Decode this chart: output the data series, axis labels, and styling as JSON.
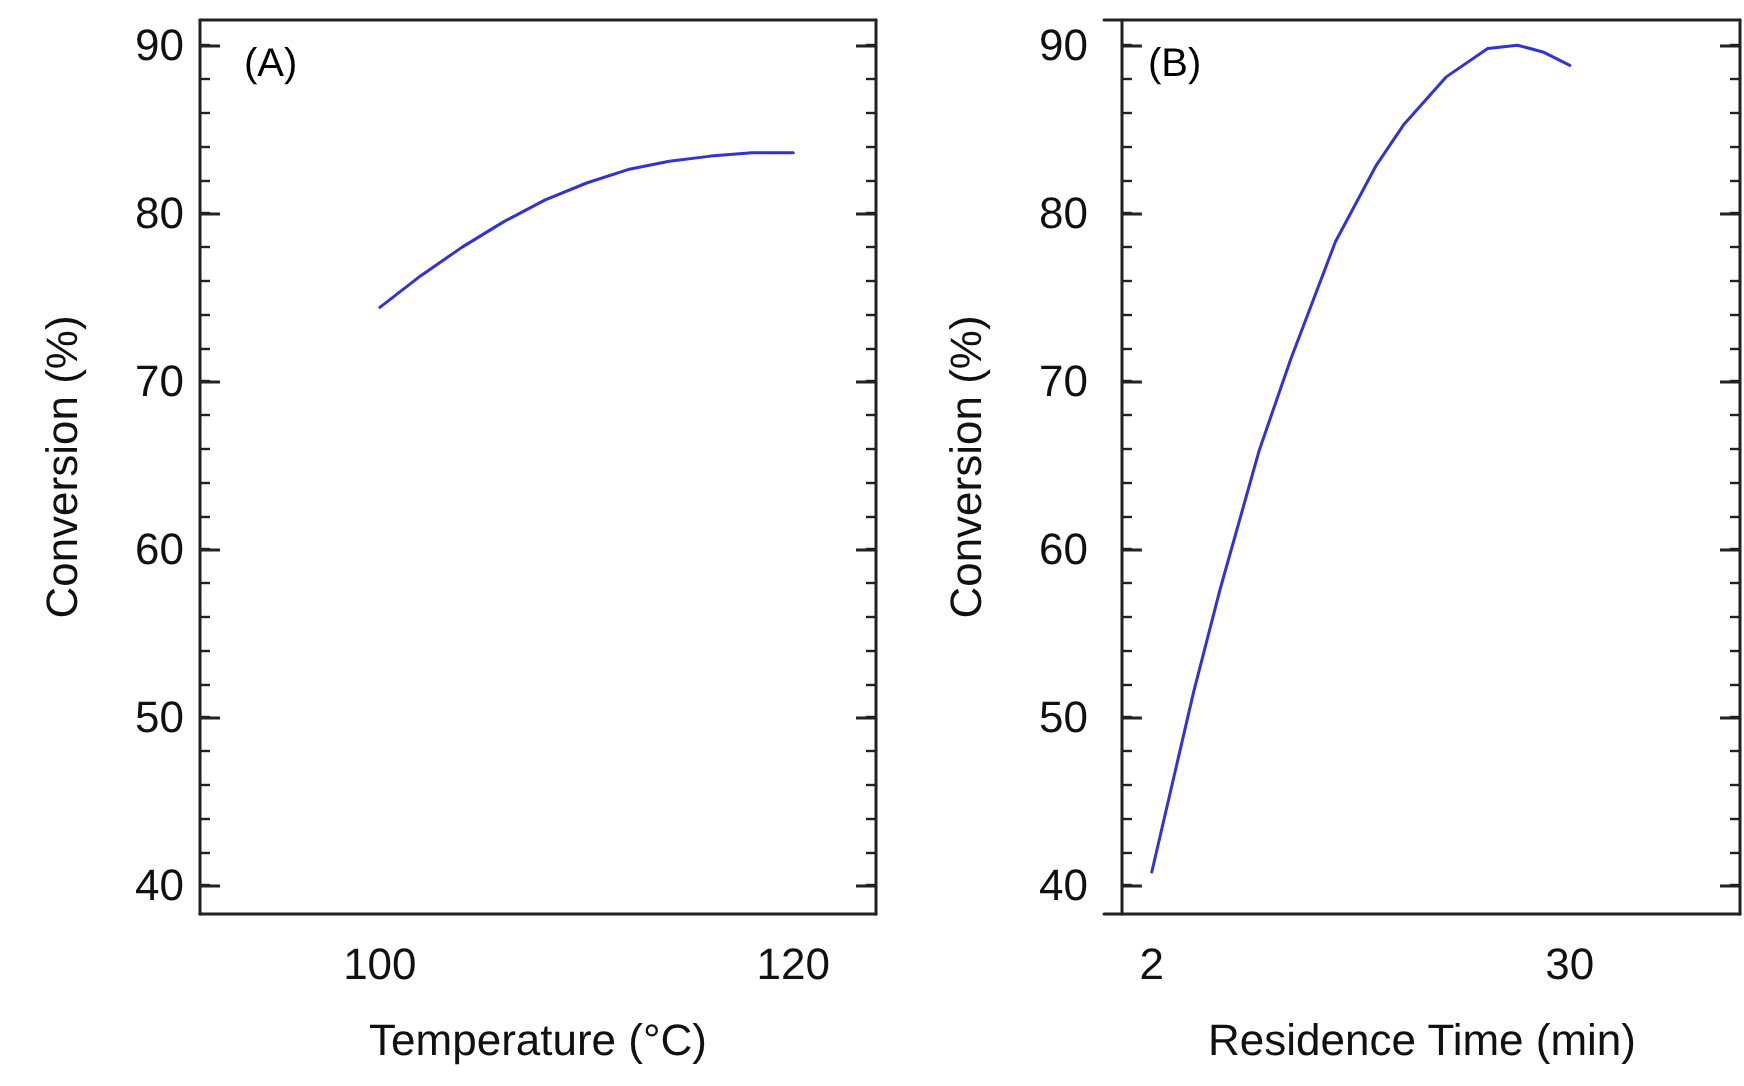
{
  "chart_data": [
    {
      "type": "line",
      "xlabel": "Temperature (°C)",
      "ylabel": "Conversion (%)",
      "annotations": [
        "(A)"
      ],
      "xlim": [
        91.3,
        124
      ],
      "xticks": [
        100,
        120
      ],
      "ylim": [
        38.3,
        91.5
      ],
      "yticks": [
        40,
        50,
        60,
        70,
        80,
        90
      ],
      "grid": false,
      "marker": "none",
      "line_style": "solid",
      "series": [
        {
          "color": "#3232d6",
          "x": [
            100,
            102,
            104,
            106,
            108,
            110,
            112,
            114,
            116,
            118,
            120
          ],
          "values": [
            74.4,
            76.3,
            78.0,
            79.5,
            80.8,
            81.8,
            82.6,
            83.1,
            83.4,
            83.6,
            83.6
          ]
        }
      ]
    },
    {
      "type": "line",
      "xlabel": "Residence Time (min)",
      "ylabel": "Conversion (%)",
      "annotations": [
        "(B)"
      ],
      "xlim": [
        -1.2,
        41.4
      ],
      "xticks": [
        2,
        30
      ],
      "ylim": [
        38.3,
        91.5
      ],
      "yticks": [
        40,
        50,
        60,
        70,
        80,
        90
      ],
      "grid": false,
      "marker": "none",
      "line_style": "solid",
      "series": [
        {
          "color": "#3232d6",
          "x": [
            2,
            4.8,
            6.6,
            9.2,
            11.3,
            14.3,
            17.0,
            18.9,
            21.7,
            24.5,
            26.5,
            28.2,
            30
          ],
          "values": [
            40.8,
            51.5,
            57.7,
            65.9,
            71.3,
            78.3,
            82.8,
            85.3,
            88.1,
            89.8,
            90.0,
            89.6,
            88.8
          ]
        }
      ]
    }
  ]
}
